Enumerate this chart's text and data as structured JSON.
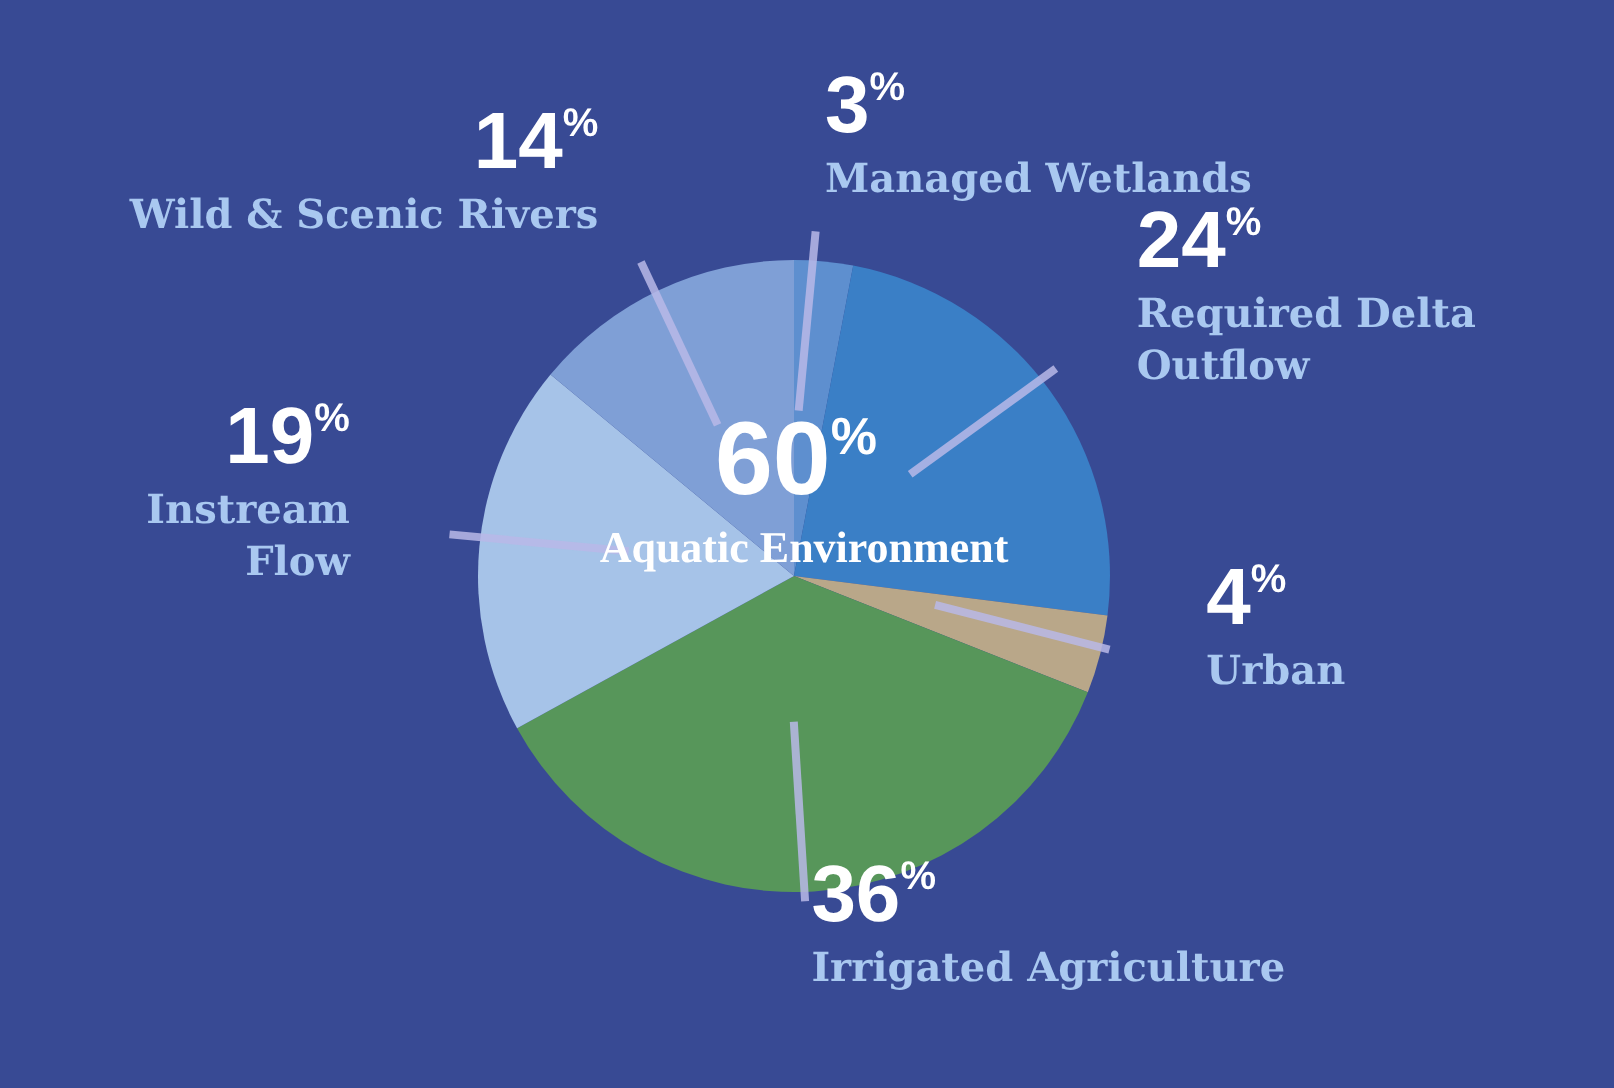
{
  "chart_data": {
    "type": "pie",
    "categories": [
      "Managed Wetlands",
      "Required Delta Outflow",
      "Urban",
      "Irrigated Agriculture",
      "Instream Flow",
      "Wild & Scenic Rivers"
    ],
    "values": [
      3,
      24,
      4,
      36,
      19,
      14
    ],
    "value_labels": [
      "3%",
      "24%",
      "4%",
      "36%",
      "19%",
      "14%"
    ],
    "colors": [
      "#5e8fcf",
      "#3a7fc6",
      "#b9a789",
      "#57965a",
      "#a6c3e8",
      "#7f9fd6"
    ],
    "annotations": [
      "60%",
      "Aquatic Environment"
    ]
  }
}
